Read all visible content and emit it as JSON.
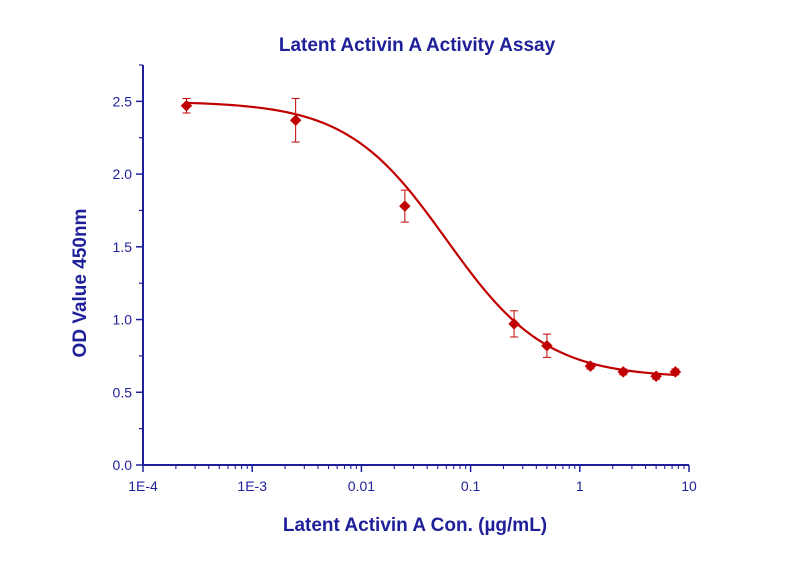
{
  "colors": {
    "axis": "#1F1F9A",
    "series": "#C00000",
    "text_axis_title": "#1F1F9A",
    "tick_label": "#1F1F9A"
  },
  "chart_data": {
    "type": "scatter",
    "title": "Latent Activin A Activity Assay",
    "xlabel": "Latent Activin A Con. (µg/mL)",
    "ylabel": "OD Value 450nm",
    "x_scale": "log",
    "xlim": [
      0.0001,
      10
    ],
    "ylim": [
      0.0,
      2.75
    ],
    "x_ticks": [
      {
        "value": 0.0001,
        "label": "1E-4"
      },
      {
        "value": 0.001,
        "label": "1E-3"
      },
      {
        "value": 0.01,
        "label": "0.01"
      },
      {
        "value": 0.1,
        "label": "0.1"
      },
      {
        "value": 1,
        "label": "1"
      },
      {
        "value": 10,
        "label": "10"
      }
    ],
    "y_ticks": [
      {
        "value": 0.0,
        "label": "0.0"
      },
      {
        "value": 0.5,
        "label": "0.5"
      },
      {
        "value": 1.0,
        "label": "1.0"
      },
      {
        "value": 1.5,
        "label": "1.5"
      },
      {
        "value": 2.0,
        "label": "2.0"
      },
      {
        "value": 2.5,
        "label": "2.5"
      }
    ],
    "grid": false,
    "legend": "none",
    "marker": "diamond",
    "series": [
      {
        "x": [
          0.00025,
          0.0025,
          0.025,
          0.25,
          0.5,
          1.25,
          2.5,
          5,
          7.5
        ],
        "y": [
          2.47,
          2.37,
          1.78,
          0.97,
          0.82,
          0.68,
          0.64,
          0.61,
          0.64
        ],
        "error": [
          0.05,
          0.15,
          0.11,
          0.09,
          0.08,
          0.02,
          0.02,
          0.02,
          0.02
        ]
      }
    ],
    "fit_curve": {
      "model": "4PL",
      "top": 2.5,
      "bottom": 0.6,
      "ec50": 0.06,
      "hill": 0.95,
      "x_range": [
        0.00025,
        7.5
      ]
    }
  }
}
